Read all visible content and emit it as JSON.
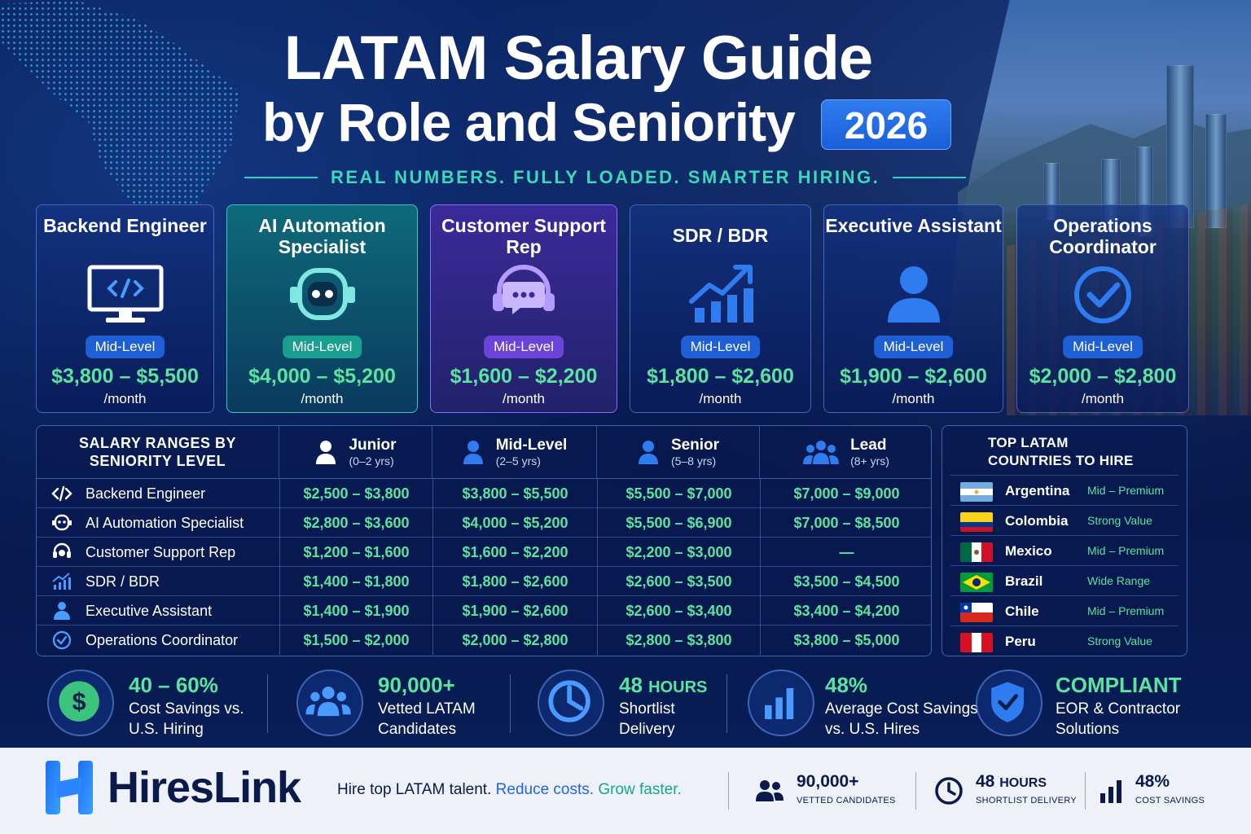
{
  "header": {
    "title_line1": "LATAM Salary Guide",
    "title_line2": "by Role and Seniority",
    "year": "2026",
    "tagline": "REAL NUMBERS. FULLY LOADED. SMARTER HIRING."
  },
  "roles": [
    {
      "title": "Backend Engineer",
      "level": "Mid-Level",
      "range": "$3,800 – $5,500",
      "per": "/month",
      "icon": "monitor-code-icon"
    },
    {
      "title": "AI Automation Specialist",
      "level": "Mid-Level",
      "range": "$4,000 – $5,200",
      "per": "/month",
      "icon": "robot-icon"
    },
    {
      "title": "Customer Support Rep",
      "level": "Mid-Level",
      "range": "$1,600 – $2,200",
      "per": "/month",
      "icon": "headset-icon"
    },
    {
      "title": "SDR / BDR",
      "level": "Mid-Level",
      "range": "$1,800 – $2,600",
      "per": "/month",
      "icon": "growth-chart-icon"
    },
    {
      "title": "Executive Assistant",
      "level": "Mid-Level",
      "range": "$1,900 – $2,600",
      "per": "/month",
      "icon": "person-icon"
    },
    {
      "title": "Operations Coordinator",
      "level": "Mid-Level",
      "range": "$2,000 – $2,800",
      "per": "/month",
      "icon": "check-circle-icon"
    }
  ],
  "table": {
    "title": "SALARY RANGES BY SENIORITY LEVEL",
    "columns": [
      {
        "label": "Junior",
        "years": "(0–2 yrs)"
      },
      {
        "label": "Mid-Level",
        "years": "(2–5 yrs)"
      },
      {
        "label": "Senior",
        "years": "(5–8 yrs)"
      },
      {
        "label": "Lead",
        "years": "(8+ yrs)"
      }
    ],
    "rows": [
      {
        "role": "Backend Engineer",
        "values": [
          "$2,500 – $3,800",
          "$3,800 – $5,500",
          "$5,500 – $7,000",
          "$7,000 – $9,000"
        ]
      },
      {
        "role": "AI Automation Specialist",
        "values": [
          "$2,800 – $3,600",
          "$4,000 – $5,200",
          "$5,500 – $6,900",
          "$7,000 – $8,500"
        ]
      },
      {
        "role": "Customer Support Rep",
        "values": [
          "$1,200 – $1,600",
          "$1,600 – $2,200",
          "$2,200 – $3,000",
          "—"
        ]
      },
      {
        "role": "SDR / BDR",
        "values": [
          "$1,400 – $1,800",
          "$1,800 – $2,600",
          "$2,600 – $3,500",
          "$3,500 – $4,500"
        ]
      },
      {
        "role": "Executive Assistant",
        "values": [
          "$1,400 – $1,900",
          "$1,900 – $2,600",
          "$2,600 – $3,400",
          "$3,400 – $4,200"
        ]
      },
      {
        "role": "Operations Coordinator",
        "values": [
          "$1,500 – $2,000",
          "$2,000 – $2,800",
          "$2,800 – $3,800",
          "$3,800 – $5,000"
        ]
      }
    ]
  },
  "countries": {
    "title_line1": "TOP LATAM",
    "title_line2": "COUNTRIES TO HIRE",
    "items": [
      {
        "name": "Argentina",
        "value": "Mid – Premium"
      },
      {
        "name": "Colombia",
        "value": "Strong Value"
      },
      {
        "name": "Mexico",
        "value": "Mid – Premium"
      },
      {
        "name": "Brazil",
        "value": "Wide Range"
      },
      {
        "name": "Chile",
        "value": "Mid – Premium"
      },
      {
        "name": "Peru",
        "value": "Strong Value"
      }
    ]
  },
  "stats": [
    {
      "big": "40 – 60%",
      "line1": "Cost Savings vs.",
      "line2": "U.S. Hiring",
      "icon": "dollar-icon"
    },
    {
      "big": "90,000+",
      "line1": "Vetted LATAM",
      "line2": "Candidates",
      "icon": "people-icon"
    },
    {
      "big_num": "48",
      "big_unit": "HOURS",
      "line1": "Shortlist",
      "line2": "Delivery",
      "icon": "clock-icon"
    },
    {
      "big": "48%",
      "line1": "Average Cost Savings",
      "line2": "vs. U.S. Hires",
      "icon": "bar-chart-icon"
    },
    {
      "big": "COMPLIANT",
      "line1": "EOR & Contractor",
      "line2": "Solutions",
      "icon": "shield-check-icon"
    }
  ],
  "footer": {
    "brand": "HiresLink",
    "slogan_a": "Hire top LATAM talent.",
    "slogan_b": "Reduce costs.",
    "slogan_c": "Grow faster.",
    "stats": [
      {
        "big": "90,000+",
        "sub": "VETTED CANDIDATES"
      },
      {
        "big_num": "48",
        "big_unit": "HOURS",
        "sub": "SHORTLIST DELIVERY"
      },
      {
        "big": "48%",
        "sub": "COST SAVINGS"
      }
    ]
  },
  "colors": {
    "accent_green": "#5be3a0",
    "brand_blue": "#1f5fd6",
    "teal": "#1a9e90",
    "purple": "#6a44d8"
  }
}
